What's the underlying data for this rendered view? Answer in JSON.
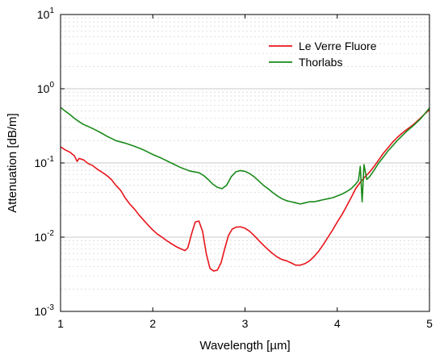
{
  "chart_data": {
    "type": "line",
    "xlabel": "Wavelength [µm]",
    "ylabel": "Attenuation [dB/m]",
    "xlim": [
      1,
      5
    ],
    "ylim": [
      0.001,
      10
    ],
    "yscale": "log",
    "x_ticks": [
      {
        "value": 1,
        "label": "1"
      },
      {
        "value": 2,
        "label": "2"
      },
      {
        "value": 3,
        "label": "3"
      },
      {
        "value": 4,
        "label": "4"
      },
      {
        "value": 5,
        "label": "5"
      }
    ],
    "y_ticks": [
      {
        "value": 0.001,
        "base": "10",
        "exp": "-3"
      },
      {
        "value": 0.01,
        "base": "10",
        "exp": "-2"
      },
      {
        "value": 0.1,
        "base": "10",
        "exp": "-1"
      },
      {
        "value": 1,
        "base": "10",
        "exp": "0"
      },
      {
        "value": 10,
        "base": "10",
        "exp": "1"
      }
    ],
    "grid": true,
    "legend_position": "top-right",
    "series": [
      {
        "name": "Le Verre Fluore",
        "color": "#e8141b",
        "points": [
          [
            1.0,
            0.165
          ],
          [
            1.05,
            0.15
          ],
          [
            1.1,
            0.14
          ],
          [
            1.15,
            0.125
          ],
          [
            1.18,
            0.105
          ],
          [
            1.2,
            0.115
          ],
          [
            1.25,
            0.11
          ],
          [
            1.3,
            0.098
          ],
          [
            1.35,
            0.092
          ],
          [
            1.4,
            0.082
          ],
          [
            1.45,
            0.075
          ],
          [
            1.5,
            0.068
          ],
          [
            1.55,
            0.06
          ],
          [
            1.6,
            0.05
          ],
          [
            1.65,
            0.043
          ],
          [
            1.7,
            0.034
          ],
          [
            1.75,
            0.028
          ],
          [
            1.8,
            0.024
          ],
          [
            1.85,
            0.02
          ],
          [
            1.9,
            0.017
          ],
          [
            1.95,
            0.0145
          ],
          [
            2.0,
            0.0125
          ],
          [
            2.05,
            0.011
          ],
          [
            2.1,
            0.01
          ],
          [
            2.15,
            0.009
          ],
          [
            2.2,
            0.0082
          ],
          [
            2.25,
            0.0075
          ],
          [
            2.3,
            0.007
          ],
          [
            2.35,
            0.0066
          ],
          [
            2.38,
            0.0072
          ],
          [
            2.42,
            0.011
          ],
          [
            2.46,
            0.016
          ],
          [
            2.5,
            0.0165
          ],
          [
            2.54,
            0.012
          ],
          [
            2.58,
            0.006
          ],
          [
            2.62,
            0.0038
          ],
          [
            2.66,
            0.0035
          ],
          [
            2.7,
            0.0036
          ],
          [
            2.74,
            0.0045
          ],
          [
            2.78,
            0.007
          ],
          [
            2.82,
            0.0105
          ],
          [
            2.86,
            0.0128
          ],
          [
            2.9,
            0.0136
          ],
          [
            2.95,
            0.0138
          ],
          [
            3.0,
            0.0132
          ],
          [
            3.05,
            0.012
          ],
          [
            3.1,
            0.0105
          ],
          [
            3.15,
            0.009
          ],
          [
            3.2,
            0.0078
          ],
          [
            3.25,
            0.0068
          ],
          [
            3.3,
            0.006
          ],
          [
            3.35,
            0.0054
          ],
          [
            3.4,
            0.005
          ],
          [
            3.45,
            0.0048
          ],
          [
            3.5,
            0.0045
          ],
          [
            3.55,
            0.0042
          ],
          [
            3.6,
            0.0042
          ],
          [
            3.65,
            0.0044
          ],
          [
            3.7,
            0.0048
          ],
          [
            3.75,
            0.0055
          ],
          [
            3.8,
            0.0065
          ],
          [
            3.85,
            0.008
          ],
          [
            3.9,
            0.01
          ],
          [
            3.95,
            0.0125
          ],
          [
            4.0,
            0.016
          ],
          [
            4.05,
            0.02
          ],
          [
            4.1,
            0.026
          ],
          [
            4.15,
            0.034
          ],
          [
            4.2,
            0.045
          ],
          [
            4.25,
            0.055
          ],
          [
            4.3,
            0.065
          ],
          [
            4.35,
            0.075
          ],
          [
            4.4,
            0.09
          ],
          [
            4.45,
            0.11
          ],
          [
            4.5,
            0.135
          ],
          [
            4.55,
            0.16
          ],
          [
            4.6,
            0.19
          ],
          [
            4.65,
            0.22
          ],
          [
            4.7,
            0.25
          ],
          [
            4.75,
            0.28
          ],
          [
            4.8,
            0.31
          ],
          [
            4.85,
            0.35
          ],
          [
            4.9,
            0.4
          ],
          [
            4.95,
            0.46
          ],
          [
            5.0,
            0.52
          ]
        ]
      },
      {
        "name": "Thorlabs",
        "color": "#1a8a1a",
        "points": [
          [
            1.0,
            0.56
          ],
          [
            1.05,
            0.5
          ],
          [
            1.1,
            0.45
          ],
          [
            1.15,
            0.4
          ],
          [
            1.2,
            0.36
          ],
          [
            1.25,
            0.33
          ],
          [
            1.3,
            0.31
          ],
          [
            1.35,
            0.29
          ],
          [
            1.4,
            0.27
          ],
          [
            1.45,
            0.25
          ],
          [
            1.5,
            0.23
          ],
          [
            1.55,
            0.215
          ],
          [
            1.6,
            0.2
          ],
          [
            1.7,
            0.185
          ],
          [
            1.8,
            0.168
          ],
          [
            1.9,
            0.15
          ],
          [
            2.0,
            0.13
          ],
          [
            2.1,
            0.115
          ],
          [
            2.2,
            0.1
          ],
          [
            2.3,
            0.087
          ],
          [
            2.4,
            0.078
          ],
          [
            2.5,
            0.074
          ],
          [
            2.55,
            0.068
          ],
          [
            2.6,
            0.06
          ],
          [
            2.65,
            0.052
          ],
          [
            2.7,
            0.047
          ],
          [
            2.75,
            0.045
          ],
          [
            2.8,
            0.05
          ],
          [
            2.85,
            0.065
          ],
          [
            2.9,
            0.076
          ],
          [
            2.95,
            0.079
          ],
          [
            3.0,
            0.077
          ],
          [
            3.05,
            0.072
          ],
          [
            3.1,
            0.065
          ],
          [
            3.15,
            0.057
          ],
          [
            3.2,
            0.05
          ],
          [
            3.25,
            0.045
          ],
          [
            3.3,
            0.04
          ],
          [
            3.35,
            0.036
          ],
          [
            3.4,
            0.033
          ],
          [
            3.45,
            0.031
          ],
          [
            3.5,
            0.03
          ],
          [
            3.55,
            0.029
          ],
          [
            3.6,
            0.028
          ],
          [
            3.65,
            0.029
          ],
          [
            3.7,
            0.03
          ],
          [
            3.75,
            0.03
          ],
          [
            3.8,
            0.031
          ],
          [
            3.85,
            0.032
          ],
          [
            3.9,
            0.033
          ],
          [
            3.95,
            0.034
          ],
          [
            4.0,
            0.036
          ],
          [
            4.05,
            0.038
          ],
          [
            4.1,
            0.041
          ],
          [
            4.15,
            0.045
          ],
          [
            4.2,
            0.052
          ],
          [
            4.23,
            0.058
          ],
          [
            4.25,
            0.09
          ],
          [
            4.27,
            0.03
          ],
          [
            4.29,
            0.095
          ],
          [
            4.32,
            0.06
          ],
          [
            4.35,
            0.065
          ],
          [
            4.4,
            0.08
          ],
          [
            4.45,
            0.1
          ],
          [
            4.5,
            0.12
          ],
          [
            4.55,
            0.145
          ],
          [
            4.6,
            0.17
          ],
          [
            4.65,
            0.2
          ],
          [
            4.7,
            0.23
          ],
          [
            4.75,
            0.265
          ],
          [
            4.8,
            0.3
          ],
          [
            4.85,
            0.34
          ],
          [
            4.9,
            0.39
          ],
          [
            4.95,
            0.46
          ],
          [
            5.0,
            0.55
          ]
        ]
      }
    ]
  }
}
